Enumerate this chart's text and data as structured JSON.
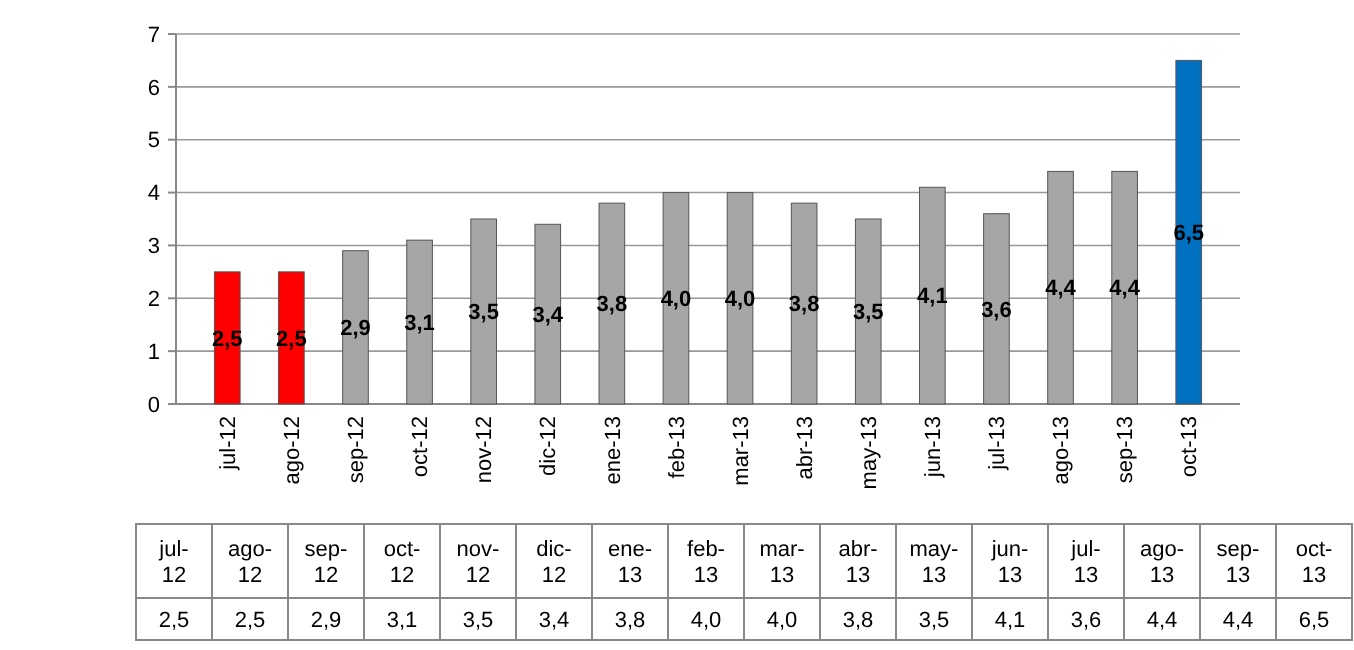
{
  "chart_data": {
    "type": "bar",
    "categories": [
      "jul-12",
      "ago-12",
      "sep-12",
      "oct-12",
      "nov-12",
      "dic-12",
      "ene-13",
      "feb-13",
      "mar-13",
      "abr-13",
      "may-13",
      "jun-13",
      "jul-13",
      "ago-13",
      "sep-13",
      "oct-13"
    ],
    "values": [
      2.5,
      2.5,
      2.9,
      3.1,
      3.5,
      3.4,
      3.8,
      4.0,
      4.0,
      3.8,
      3.5,
      4.1,
      3.6,
      4.4,
      4.4,
      6.5
    ],
    "value_labels": [
      "2,5",
      "2,5",
      "2,9",
      "3,1",
      "3,5",
      "3,4",
      "3,8",
      "4,0",
      "4,0",
      "3,8",
      "3,5",
      "4,1",
      "3,6",
      "4,4",
      "4,4",
      "6,5"
    ],
    "colors": [
      "#ff0000",
      "#ff0000",
      "#a6a6a6",
      "#a6a6a6",
      "#a6a6a6",
      "#a6a6a6",
      "#a6a6a6",
      "#a6a6a6",
      "#a6a6a6",
      "#a6a6a6",
      "#a6a6a6",
      "#a6a6a6",
      "#a6a6a6",
      "#a6a6a6",
      "#a6a6a6",
      "#0070c0"
    ],
    "ylim": [
      0,
      7
    ],
    "yticks": [
      0,
      1,
      2,
      3,
      4,
      5,
      6,
      7
    ],
    "grid": "y"
  }
}
